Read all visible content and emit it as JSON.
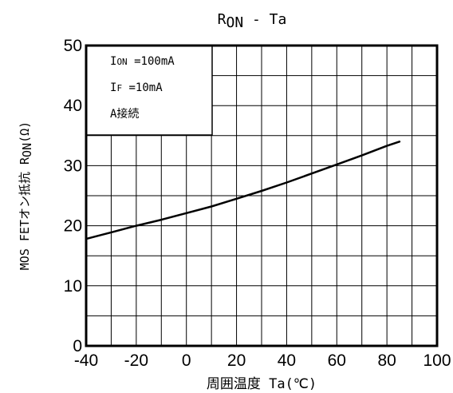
{
  "chart_data": {
    "type": "line",
    "title": {
      "main": "R",
      "sub": "ON",
      "rest": " - Ta"
    },
    "xlabel": "周囲温度  Ta(℃)",
    "ylabel": {
      "pre": "MOS FETオン抵抗 R",
      "sub": "ON",
      "post": "(Ω)"
    },
    "xlim": [
      -40,
      100
    ],
    "ylim": [
      0,
      50
    ],
    "xticks": [
      -40,
      -20,
      0,
      20,
      40,
      60,
      80,
      100
    ],
    "yticks": [
      0,
      10,
      20,
      30,
      40,
      50
    ],
    "grid": true,
    "legend_placement": "top-left",
    "conditions": [
      {
        "main": "I",
        "sub": "ON",
        "rest": " =100mA"
      },
      {
        "main": "I",
        "sub": "F",
        "rest": " =10mA"
      },
      {
        "main": "A接続",
        "sub": "",
        "rest": ""
      }
    ],
    "series": [
      {
        "color": "#000000",
        "x": [
          -40,
          -30,
          -20,
          -10,
          0,
          10,
          20,
          30,
          40,
          50,
          60,
          70,
          80,
          85
        ],
        "y": [
          17.8,
          18.9,
          20.0,
          21.0,
          22.1,
          23.2,
          24.5,
          25.8,
          27.2,
          28.7,
          30.2,
          31.7,
          33.3,
          34.0
        ]
      }
    ]
  }
}
